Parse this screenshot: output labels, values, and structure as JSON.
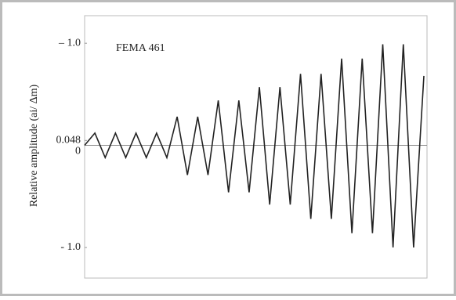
{
  "chart_data": {
    "type": "line",
    "annotation": "FEMA 461",
    "y_label": "Relative amplitude (ai/ Δm)",
    "x": [
      0,
      1,
      2,
      3,
      4,
      5,
      6,
      7,
      8,
      9,
      10,
      11,
      12,
      13,
      14,
      15,
      16,
      17,
      18,
      19,
      20,
      21,
      22,
      23,
      24,
      25,
      26,
      27,
      28,
      29,
      30,
      31,
      32,
      33
    ],
    "series": [
      {
        "color": "#222222",
        "values": [
          0,
          0.12,
          -0.12,
          0.12,
          -0.12,
          0.12,
          -0.12,
          0.12,
          -0.12,
          0.28,
          -0.29,
          0.28,
          -0.29,
          0.44,
          -0.46,
          0.44,
          -0.46,
          0.57,
          -0.58,
          0.57,
          -0.58,
          0.7,
          -0.72,
          0.7,
          -0.72,
          0.85,
          -0.86,
          0.85,
          -0.86,
          0.99,
          -1.0,
          0.99,
          -1.0,
          0.68
        ]
      }
    ],
    "xlim": [
      0,
      33
    ],
    "ylim": [
      -1.3,
      1.27
    ],
    "yticks": [
      {
        "value": 1.0,
        "label": "– 1.0"
      },
      0.048,
      0,
      {
        "value": -1.0,
        "label": "- 1.0"
      }
    ],
    "zero_line": true
  }
}
